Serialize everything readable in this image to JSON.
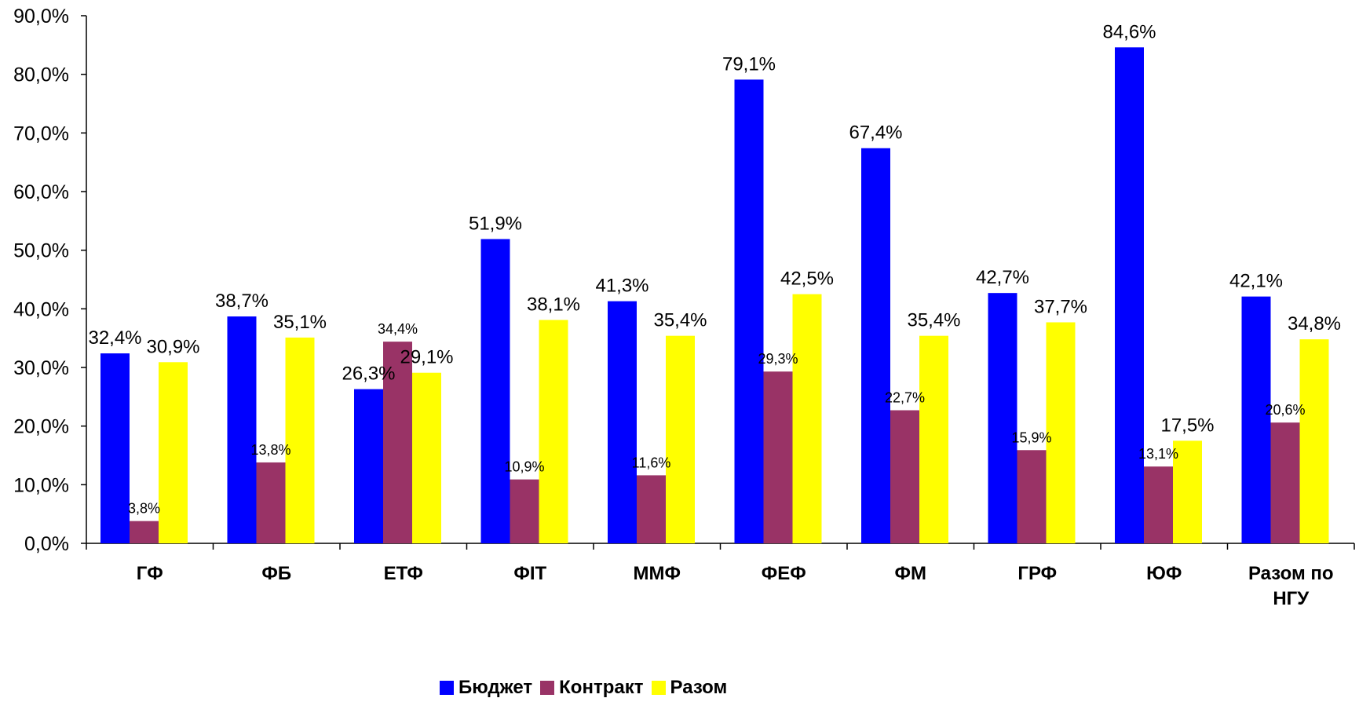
{
  "chart_data": {
    "type": "bar",
    "categories": [
      "ГФ",
      "ФБ",
      "ЕТФ",
      "ФІТ",
      "ММФ",
      "ФЕФ",
      "ФМ",
      "ГРФ",
      "ЮФ",
      "Разом по НГУ"
    ],
    "series": [
      {
        "name": "Бюджет",
        "color": "#0000ff",
        "values": [
          32.4,
          38.7,
          26.3,
          51.9,
          41.3,
          79.1,
          67.4,
          42.7,
          84.6,
          42.1
        ],
        "labels": [
          "32,4%",
          "38,7%",
          "26,3%",
          "51,9%",
          "41,3%",
          "79,1%",
          "67,4%",
          "42,7%",
          "84,6%",
          "42,1%"
        ]
      },
      {
        "name": "Контракт",
        "color": "#993366",
        "values": [
          3.8,
          13.8,
          34.4,
          10.9,
          11.6,
          29.3,
          22.7,
          15.9,
          13.1,
          20.6
        ],
        "labels": [
          "3,8%",
          "13,8%",
          "34,4%",
          "10,9%",
          "11,6%",
          "29,3%",
          "22,7%",
          "15,9%",
          "13,1%",
          "20,6%"
        ]
      },
      {
        "name": "Разом",
        "color": "#ffff00",
        "values": [
          30.9,
          35.1,
          29.1,
          38.1,
          35.4,
          42.5,
          35.4,
          37.7,
          17.5,
          34.8
        ],
        "labels": [
          "30,9%",
          "35,1%",
          "29,1%",
          "38,1%",
          "35,4%",
          "42,5%",
          "35,4%",
          "37,7%",
          "17,5%",
          "34,8%"
        ]
      }
    ],
    "y_ticks": [
      "0,0%",
      "10,0%",
      "20,0%",
      "30,0%",
      "40,0%",
      "50,0%",
      "60,0%",
      "70,0%",
      "80,0%",
      "90,0%"
    ],
    "ylim": [
      0,
      90
    ],
    "grid": false,
    "legend_position": "bottom",
    "title": "",
    "xlabel": "",
    "ylabel": ""
  }
}
